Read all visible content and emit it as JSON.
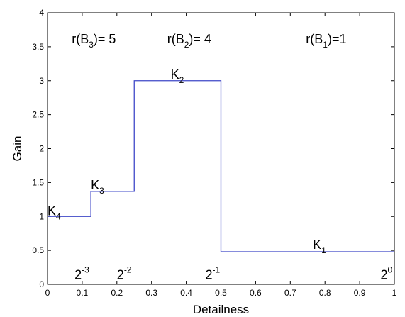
{
  "chart_data": {
    "type": "line",
    "xlabel": "Detailness",
    "ylabel": "Gain",
    "xlim": [
      0,
      1
    ],
    "ylim": [
      0,
      4
    ],
    "x_ticks": [
      "0",
      "0.1",
      "0.2",
      "0.3",
      "0.4",
      "0.5",
      "0.6",
      "0.7",
      "0.8",
      "0.9",
      "1"
    ],
    "y_ticks": [
      "0",
      "0.5",
      "1",
      "1.5",
      "2",
      "2.5",
      "3",
      "3.5",
      "4"
    ],
    "grid": false,
    "series": [
      {
        "color": "#3f48c8",
        "shape": "step",
        "x": [
          0,
          0.125,
          0.125,
          0.25,
          0.25,
          0.5,
          0.5,
          1.0
        ],
        "y": [
          1.0,
          1.0,
          1.37,
          1.37,
          3.0,
          3.0,
          0.48,
          0.48
        ]
      }
    ],
    "annotations": [
      {
        "id": "k4",
        "base": "K",
        "sub": "4",
        "x": 0.0,
        "y": 1.02
      },
      {
        "id": "k3",
        "base": "K",
        "sub": "3",
        "x": 0.125,
        "y": 1.4
      },
      {
        "id": "k2",
        "base": "K",
        "sub": "2",
        "x": 0.355,
        "y": 3.03
      },
      {
        "id": "k1",
        "base": "K",
        "sub": "1",
        "x": 0.765,
        "y": 0.52
      },
      {
        "id": "rb3",
        "pre": "r(B",
        "sub": "3",
        "post": ")= 5",
        "x": 0.07,
        "y": 3.55
      },
      {
        "id": "rb2",
        "pre": "r(B",
        "sub": "2",
        "post": ")= 4",
        "x": 0.345,
        "y": 3.55
      },
      {
        "id": "rb1",
        "pre": "r(B",
        "sub": "1",
        "post": ")=1",
        "x": 0.745,
        "y": 3.55
      },
      {
        "id": "p3",
        "base": "2",
        "sup": "-3",
        "x": 0.078,
        "y": 0.08
      },
      {
        "id": "p2",
        "base": "2",
        "sup": "-2",
        "x": 0.2,
        "y": 0.08
      },
      {
        "id": "p1",
        "base": "2",
        "sup": "-1",
        "x": 0.455,
        "y": 0.08
      },
      {
        "id": "p0",
        "base": "2",
        "sup": "0",
        "x": 0.96,
        "y": 0.08
      }
    ]
  }
}
